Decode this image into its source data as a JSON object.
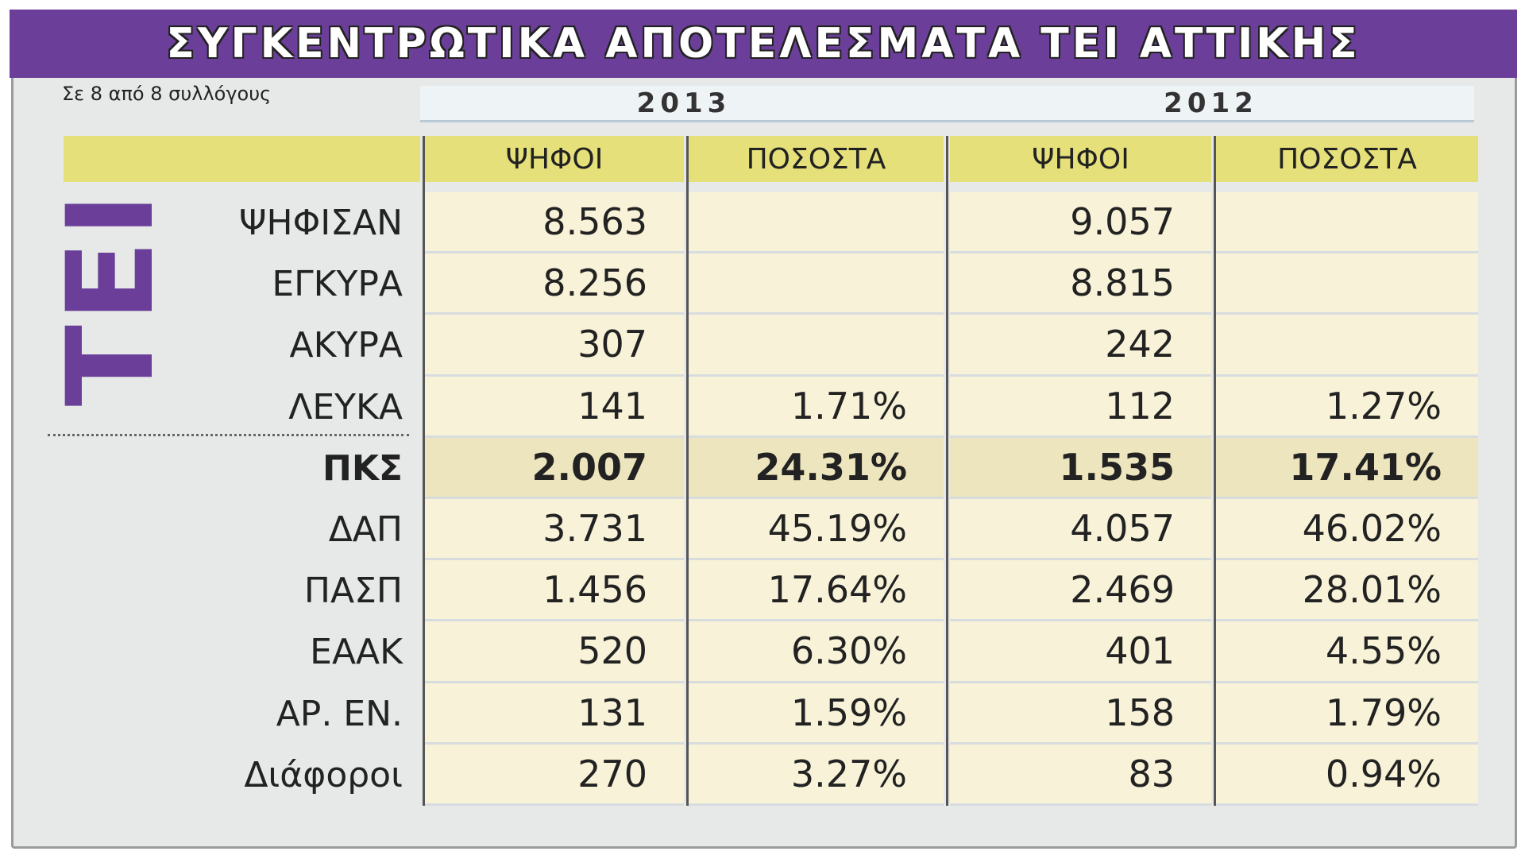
{
  "header": {
    "title": "ΣΥΓΚΕΝΤΡΩΤΙΚΑ ΑΠΟΤΕΛΕΣΜΑΤΑ ΤΕΙ ΑΤΤΙΚΗΣ",
    "subtitle": "Σε 8 από 8 συλλόγους",
    "side_label": "ΤΕΙ"
  },
  "table": {
    "years": [
      "2013",
      "2012"
    ],
    "columns": [
      "ΨΗΦΟΙ",
      "ΠΟΣΟΣΤΑ",
      "ΨΗΦΟΙ",
      "ΠΟΣΟΣΤΑ"
    ],
    "rows": [
      {
        "label": "ΨΗΦΙΣΑΝ",
        "cells": [
          "8.563",
          null,
          "9.057",
          null
        ]
      },
      {
        "label": "ΕΓΚΥΡΑ",
        "cells": [
          "8.256",
          null,
          "8.815",
          null
        ]
      },
      {
        "label": "ΑΚΥΡΑ",
        "cells": [
          "307",
          null,
          "242",
          null
        ]
      },
      {
        "label": "ΛΕΥΚΑ",
        "cells": [
          "141",
          "1.71%",
          "112",
          "1.27%"
        ]
      },
      {
        "label": "ΠΚΣ",
        "cells": [
          "2.007",
          "24.31%",
          "1.535",
          "17.41%"
        ],
        "bold": true
      },
      {
        "label": "ΔΑΠ",
        "cells": [
          "3.731",
          "45.19%",
          "4.057",
          "46.02%"
        ]
      },
      {
        "label": "ΠΑΣΠ",
        "cells": [
          "1.456",
          "17.64%",
          "2.469",
          "28.01%"
        ]
      },
      {
        "label": "ΕΑΑΚ",
        "cells": [
          "520",
          "6.30%",
          "401",
          "4.55%"
        ]
      },
      {
        "label": "ΑΡ. ΕΝ.",
        "cells": [
          "131",
          "1.59%",
          "158",
          "1.79%"
        ]
      },
      {
        "label": "Διάφοροι",
        "cells": [
          "270",
          "3.27%",
          "83",
          "0.94%"
        ]
      }
    ]
  }
}
